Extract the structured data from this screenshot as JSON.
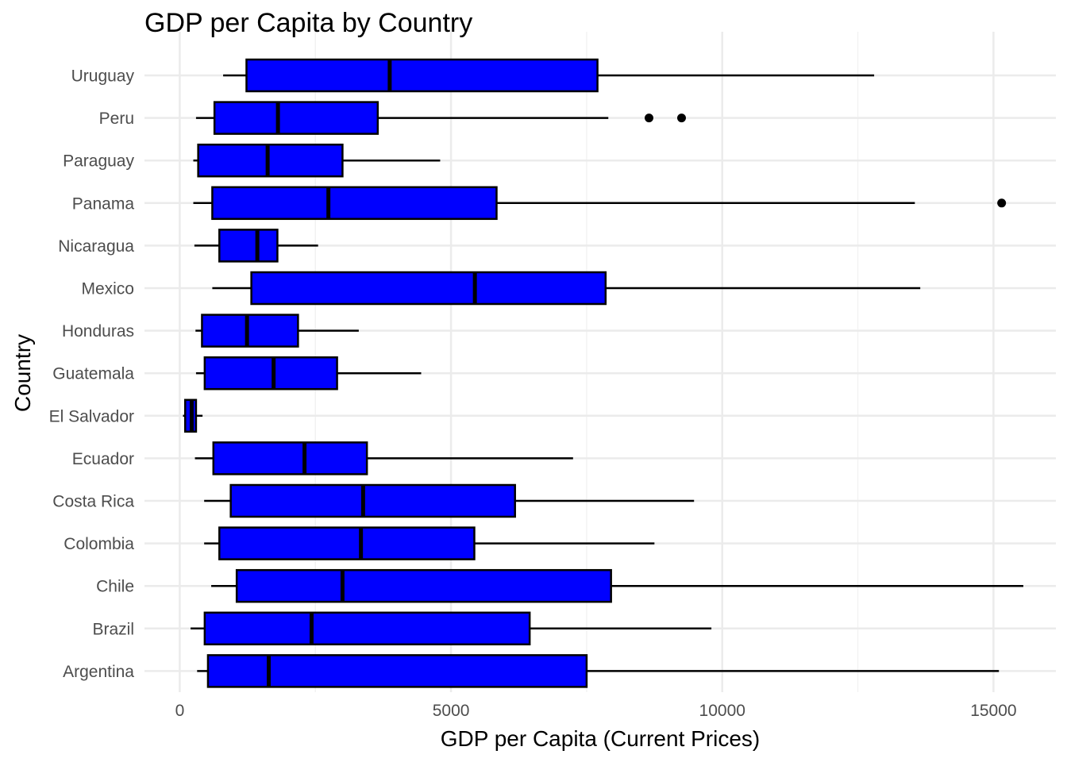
{
  "chart_data": {
    "type": "boxplot",
    "orientation": "horizontal",
    "title": "GDP per Capita by Country",
    "xlabel": "GDP per Capita (Current Prices)",
    "ylabel": "Country",
    "xlim": [
      -650,
      16150
    ],
    "x_ticks": [
      0,
      5000,
      10000,
      15000
    ],
    "x_tick_labels": [
      "0",
      "5000",
      "10000",
      "15000"
    ],
    "grid": true,
    "colors": {
      "box_fill": "#0000ff",
      "box_stroke": "#000000",
      "grid": "#ebebeb"
    },
    "categories": [
      "Uruguay",
      "Peru",
      "Paraguay",
      "Panama",
      "Nicaragua",
      "Mexico",
      "Honduras",
      "Guatemala",
      "El Salvador",
      "Ecuador",
      "Costa Rica",
      "Colombia",
      "Chile",
      "Brazil",
      "Argentina"
    ],
    "boxes": [
      {
        "category": "Uruguay",
        "whisker_low": 800,
        "q1": 1230,
        "median": 3870,
        "q3": 7700,
        "whisker_high": 12800,
        "outliers": []
      },
      {
        "category": "Peru",
        "whisker_low": 300,
        "q1": 640,
        "median": 1810,
        "q3": 3650,
        "whisker_high": 7900,
        "outliers": [
          8650,
          9250
        ]
      },
      {
        "category": "Paraguay",
        "whisker_low": 250,
        "q1": 340,
        "median": 1620,
        "q3": 3000,
        "whisker_high": 4800,
        "outliers": []
      },
      {
        "category": "Panama",
        "whisker_low": 250,
        "q1": 600,
        "median": 2740,
        "q3": 5840,
        "whisker_high": 13550,
        "outliers": [
          15150
        ]
      },
      {
        "category": "Nicaragua",
        "whisker_low": 270,
        "q1": 730,
        "median": 1430,
        "q3": 1800,
        "whisker_high": 2550,
        "outliers": []
      },
      {
        "category": "Mexico",
        "whisker_low": 600,
        "q1": 1320,
        "median": 5440,
        "q3": 7850,
        "whisker_high": 13650,
        "outliers": []
      },
      {
        "category": "Honduras",
        "whisker_low": 290,
        "q1": 410,
        "median": 1240,
        "q3": 2180,
        "whisker_high": 3300,
        "outliers": []
      },
      {
        "category": "Guatemala",
        "whisker_low": 300,
        "q1": 460,
        "median": 1730,
        "q3": 2900,
        "whisker_high": 4450,
        "outliers": []
      },
      {
        "category": "El Salvador",
        "whisker_low": 60,
        "q1": 100,
        "median": 220,
        "q3": 300,
        "whisker_high": 420,
        "outliers": []
      },
      {
        "category": "Ecuador",
        "whisker_low": 280,
        "q1": 620,
        "median": 2300,
        "q3": 3450,
        "whisker_high": 7250,
        "outliers": []
      },
      {
        "category": "Costa Rica",
        "whisker_low": 450,
        "q1": 940,
        "median": 3380,
        "q3": 6180,
        "whisker_high": 9480,
        "outliers": []
      },
      {
        "category": "Colombia",
        "whisker_low": 450,
        "q1": 730,
        "median": 3340,
        "q3": 5430,
        "whisker_high": 8750,
        "outliers": []
      },
      {
        "category": "Chile",
        "whisker_low": 580,
        "q1": 1050,
        "median": 3000,
        "q3": 7950,
        "whisker_high": 15550,
        "outliers": []
      },
      {
        "category": "Brazil",
        "whisker_low": 200,
        "q1": 460,
        "median": 2430,
        "q3": 6450,
        "whisker_high": 9800,
        "outliers": []
      },
      {
        "category": "Argentina",
        "whisker_low": 320,
        "q1": 520,
        "median": 1640,
        "q3": 7500,
        "whisker_high": 15100,
        "outliers": []
      }
    ]
  }
}
